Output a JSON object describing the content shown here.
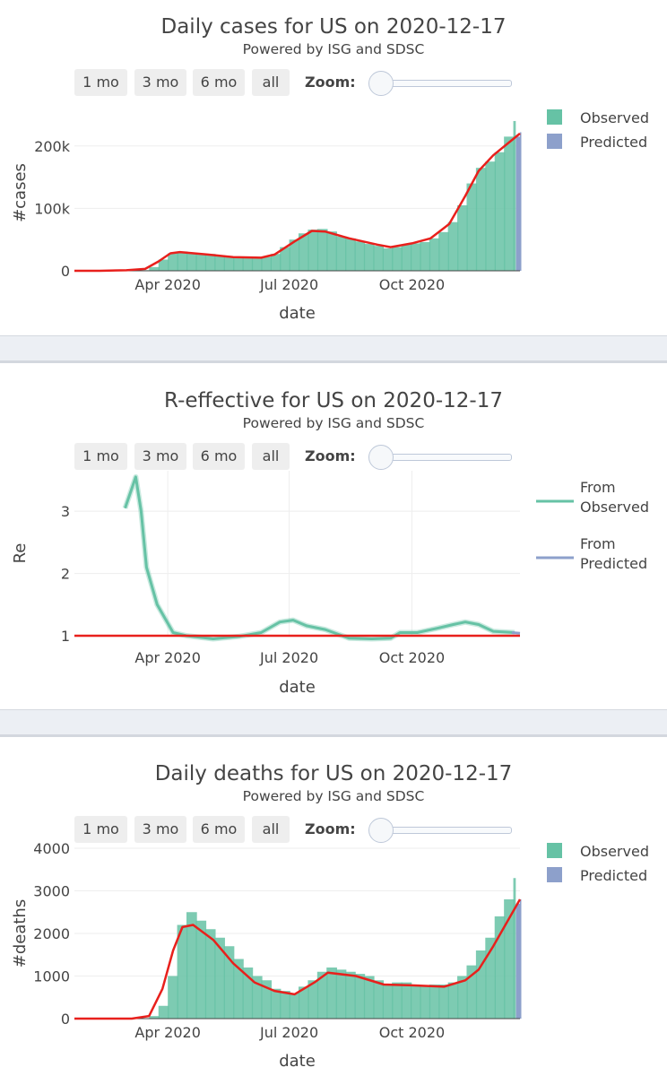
{
  "buttons": [
    "1 mo",
    "3 mo",
    "6 mo",
    "all"
  ],
  "zoom_label": "Zoom:",
  "colors": {
    "observed": "#66c2a5",
    "predicted": "#8da0cb",
    "fit": "#e8201c"
  },
  "chart_data": [
    {
      "type": "bar",
      "title": "Daily cases for US on 2020-12-17",
      "subtitle": "Powered by ISG and SDSC",
      "xlabel": "date",
      "ylabel": "#cases",
      "x_ticks": [
        "Apr 2020",
        "Jul 2020",
        "Oct 2020"
      ],
      "y_ticks": [
        "0",
        "100k",
        "200k"
      ],
      "ylim": [
        0,
        250000
      ],
      "x_range": [
        "2020-01-22",
        "2020-12-21"
      ],
      "legend": [
        "Observed",
        "Predicted"
      ],
      "legend_position": "right",
      "observed_weekly": [
        {
          "date": "2020-01-22",
          "value": 0
        },
        {
          "date": "2020-02-19",
          "value": 0
        },
        {
          "date": "2020-03-04",
          "value": 200
        },
        {
          "date": "2020-03-11",
          "value": 1000
        },
        {
          "date": "2020-03-18",
          "value": 6000
        },
        {
          "date": "2020-03-25",
          "value": 18000
        },
        {
          "date": "2020-04-01",
          "value": 28000
        },
        {
          "date": "2020-04-08",
          "value": 31000
        },
        {
          "date": "2020-04-15",
          "value": 29000
        },
        {
          "date": "2020-04-22",
          "value": 28000
        },
        {
          "date": "2020-04-29",
          "value": 27000
        },
        {
          "date": "2020-05-06",
          "value": 25000
        },
        {
          "date": "2020-05-13",
          "value": 23000
        },
        {
          "date": "2020-05-20",
          "value": 22000
        },
        {
          "date": "2020-05-27",
          "value": 21000
        },
        {
          "date": "2020-06-03",
          "value": 21000
        },
        {
          "date": "2020-06-10",
          "value": 22000
        },
        {
          "date": "2020-06-17",
          "value": 27000
        },
        {
          "date": "2020-06-24",
          "value": 38000
        },
        {
          "date": "2020-07-01",
          "value": 50000
        },
        {
          "date": "2020-07-08",
          "value": 60000
        },
        {
          "date": "2020-07-15",
          "value": 66000
        },
        {
          "date": "2020-07-22",
          "value": 67000
        },
        {
          "date": "2020-07-29",
          "value": 63000
        },
        {
          "date": "2020-08-05",
          "value": 55000
        },
        {
          "date": "2020-08-12",
          "value": 52000
        },
        {
          "date": "2020-08-19",
          "value": 47000
        },
        {
          "date": "2020-08-26",
          "value": 43000
        },
        {
          "date": "2020-09-02",
          "value": 40000
        },
        {
          "date": "2020-09-09",
          "value": 36000
        },
        {
          "date": "2020-09-16",
          "value": 38000
        },
        {
          "date": "2020-09-23",
          "value": 42000
        },
        {
          "date": "2020-09-30",
          "value": 44000
        },
        {
          "date": "2020-10-07",
          "value": 46000
        },
        {
          "date": "2020-10-14",
          "value": 52000
        },
        {
          "date": "2020-10-21",
          "value": 62000
        },
        {
          "date": "2020-10-28",
          "value": 78000
        },
        {
          "date": "2020-11-04",
          "value": 105000
        },
        {
          "date": "2020-11-11",
          "value": 140000
        },
        {
          "date": "2020-11-18",
          "value": 165000
        },
        {
          "date": "2020-11-25",
          "value": 175000
        },
        {
          "date": "2020-12-02",
          "value": 190000
        },
        {
          "date": "2020-12-09",
          "value": 215000
        },
        {
          "date": "2020-12-16",
          "value": 240000
        }
      ],
      "predicted": [
        {
          "date": "2020-12-18",
          "value": 215000
        },
        {
          "date": "2020-12-21",
          "value": 222000
        }
      ],
      "fit": [
        {
          "date": "2020-01-22",
          "value": 0
        },
        {
          "date": "2020-02-10",
          "value": 0
        },
        {
          "date": "2020-03-01",
          "value": 800
        },
        {
          "date": "2020-03-15",
          "value": 3000
        },
        {
          "date": "2020-03-25",
          "value": 15000
        },
        {
          "date": "2020-04-03",
          "value": 28000
        },
        {
          "date": "2020-04-10",
          "value": 30000
        },
        {
          "date": "2020-05-01",
          "value": 26000
        },
        {
          "date": "2020-05-20",
          "value": 22000
        },
        {
          "date": "2020-06-10",
          "value": 21000
        },
        {
          "date": "2020-06-20",
          "value": 26000
        },
        {
          "date": "2020-07-05",
          "value": 47000
        },
        {
          "date": "2020-07-18",
          "value": 64000
        },
        {
          "date": "2020-07-28",
          "value": 63000
        },
        {
          "date": "2020-08-15",
          "value": 52000
        },
        {
          "date": "2020-09-05",
          "value": 42000
        },
        {
          "date": "2020-09-15",
          "value": 38000
        },
        {
          "date": "2020-10-01",
          "value": 44000
        },
        {
          "date": "2020-10-15",
          "value": 52000
        },
        {
          "date": "2020-10-29",
          "value": 75000
        },
        {
          "date": "2020-11-10",
          "value": 120000
        },
        {
          "date": "2020-11-20",
          "value": 160000
        },
        {
          "date": "2020-12-01",
          "value": 185000
        },
        {
          "date": "2020-12-21",
          "value": 220000
        }
      ]
    },
    {
      "type": "line",
      "title": "R-effective for US on 2020-12-17",
      "subtitle": "Powered by ISG and SDSC",
      "xlabel": "date",
      "ylabel": "Re",
      "x_ticks": [
        "Apr 2020",
        "Jul 2020",
        "Oct 2020"
      ],
      "y_ticks": [
        "1",
        "2",
        "3"
      ],
      "ylim": [
        1,
        3.65
      ],
      "x_range": [
        "2020-01-22",
        "2020-12-21"
      ],
      "grid": true,
      "legend": [
        "From Observed",
        "From Predicted"
      ],
      "legend_position": "right",
      "series": [
        {
          "name": "From Observed",
          "points": [
            {
              "date": "2020-02-29",
              "value": 3.05
            },
            {
              "date": "2020-03-04",
              "value": 3.3
            },
            {
              "date": "2020-03-08",
              "value": 3.55
            },
            {
              "date": "2020-03-12",
              "value": 3.0
            },
            {
              "date": "2020-03-16",
              "value": 2.1
            },
            {
              "date": "2020-03-24",
              "value": 1.5
            },
            {
              "date": "2020-04-05",
              "value": 1.05
            },
            {
              "date": "2020-04-15",
              "value": 1.0
            },
            {
              "date": "2020-05-05",
              "value": 0.95
            },
            {
              "date": "2020-05-25",
              "value": 0.99
            },
            {
              "date": "2020-06-10",
              "value": 1.05
            },
            {
              "date": "2020-06-24",
              "value": 1.22
            },
            {
              "date": "2020-07-04",
              "value": 1.25
            },
            {
              "date": "2020-07-14",
              "value": 1.16
            },
            {
              "date": "2020-07-28",
              "value": 1.1
            },
            {
              "date": "2020-08-15",
              "value": 0.96
            },
            {
              "date": "2020-09-01",
              "value": 0.95
            },
            {
              "date": "2020-09-15",
              "value": 0.96
            },
            {
              "date": "2020-09-22",
              "value": 1.05
            },
            {
              "date": "2020-10-05",
              "value": 1.05
            },
            {
              "date": "2020-10-20",
              "value": 1.12
            },
            {
              "date": "2020-11-01",
              "value": 1.18
            },
            {
              "date": "2020-11-10",
              "value": 1.22
            },
            {
              "date": "2020-11-20",
              "value": 1.18
            },
            {
              "date": "2020-12-01",
              "value": 1.07
            },
            {
              "date": "2020-12-17",
              "value": 1.05
            }
          ]
        },
        {
          "name": "From Predicted",
          "points": [
            {
              "date": "2020-12-15",
              "value": 1.05
            },
            {
              "date": "2020-12-21",
              "value": 1.04
            }
          ]
        }
      ],
      "reference_line": 1
    },
    {
      "type": "bar",
      "title": "Daily deaths for US on 2020-12-17",
      "subtitle": "Powered by ISG and SDSC",
      "xlabel": "date",
      "ylabel": "#deaths",
      "x_ticks": [
        "Apr 2020",
        "Jul 2020",
        "Oct 2020"
      ],
      "y_ticks": [
        "0",
        "1000",
        "2000",
        "3000",
        "4000"
      ],
      "ylim": [
        0,
        4000
      ],
      "x_range": [
        "2020-01-22",
        "2020-12-21"
      ],
      "legend": [
        "Observed",
        "Predicted"
      ],
      "legend_position": "right",
      "observed_weekly": [
        {
          "date": "2020-01-22",
          "value": 0
        },
        {
          "date": "2020-02-26",
          "value": 0
        },
        {
          "date": "2020-03-11",
          "value": 10
        },
        {
          "date": "2020-03-18",
          "value": 60
        },
        {
          "date": "2020-03-25",
          "value": 300
        },
        {
          "date": "2020-04-01",
          "value": 1000
        },
        {
          "date": "2020-04-08",
          "value": 2200
        },
        {
          "date": "2020-04-15",
          "value": 2500
        },
        {
          "date": "2020-04-22",
          "value": 2300
        },
        {
          "date": "2020-04-29",
          "value": 2100
        },
        {
          "date": "2020-05-06",
          "value": 1900
        },
        {
          "date": "2020-05-13",
          "value": 1700
        },
        {
          "date": "2020-05-20",
          "value": 1400
        },
        {
          "date": "2020-05-27",
          "value": 1200
        },
        {
          "date": "2020-06-03",
          "value": 1000
        },
        {
          "date": "2020-06-10",
          "value": 900
        },
        {
          "date": "2020-06-17",
          "value": 700
        },
        {
          "date": "2020-06-24",
          "value": 650
        },
        {
          "date": "2020-07-01",
          "value": 600
        },
        {
          "date": "2020-07-08",
          "value": 750
        },
        {
          "date": "2020-07-15",
          "value": 900
        },
        {
          "date": "2020-07-22",
          "value": 1100
        },
        {
          "date": "2020-07-29",
          "value": 1200
        },
        {
          "date": "2020-08-05",
          "value": 1150
        },
        {
          "date": "2020-08-12",
          "value": 1100
        },
        {
          "date": "2020-08-19",
          "value": 1050
        },
        {
          "date": "2020-08-26",
          "value": 1000
        },
        {
          "date": "2020-09-02",
          "value": 900
        },
        {
          "date": "2020-09-09",
          "value": 800
        },
        {
          "date": "2020-09-16",
          "value": 850
        },
        {
          "date": "2020-09-23",
          "value": 850
        },
        {
          "date": "2020-09-30",
          "value": 800
        },
        {
          "date": "2020-10-07",
          "value": 750
        },
        {
          "date": "2020-10-14",
          "value": 800
        },
        {
          "date": "2020-10-21",
          "value": 800
        },
        {
          "date": "2020-10-28",
          "value": 850
        },
        {
          "date": "2020-11-04",
          "value": 1000
        },
        {
          "date": "2020-11-11",
          "value": 1250
        },
        {
          "date": "2020-11-18",
          "value": 1600
        },
        {
          "date": "2020-11-25",
          "value": 1900
        },
        {
          "date": "2020-12-02",
          "value": 2400
        },
        {
          "date": "2020-12-09",
          "value": 2800
        },
        {
          "date": "2020-12-16",
          "value": 3300
        }
      ],
      "predicted": [
        {
          "date": "2020-12-18",
          "value": 2700
        },
        {
          "date": "2020-12-21",
          "value": 2800
        }
      ],
      "fit": [
        {
          "date": "2020-01-22",
          "value": 0
        },
        {
          "date": "2020-03-05",
          "value": 0
        },
        {
          "date": "2020-03-18",
          "value": 60
        },
        {
          "date": "2020-03-28",
          "value": 700
        },
        {
          "date": "2020-04-05",
          "value": 1600
        },
        {
          "date": "2020-04-12",
          "value": 2150
        },
        {
          "date": "2020-04-20",
          "value": 2200
        },
        {
          "date": "2020-05-05",
          "value": 1850
        },
        {
          "date": "2020-05-20",
          "value": 1300
        },
        {
          "date": "2020-06-05",
          "value": 850
        },
        {
          "date": "2020-06-20",
          "value": 650
        },
        {
          "date": "2020-07-05",
          "value": 570
        },
        {
          "date": "2020-07-20",
          "value": 850
        },
        {
          "date": "2020-07-30",
          "value": 1080
        },
        {
          "date": "2020-08-20",
          "value": 1000
        },
        {
          "date": "2020-09-10",
          "value": 800
        },
        {
          "date": "2020-10-01",
          "value": 780
        },
        {
          "date": "2020-10-25",
          "value": 750
        },
        {
          "date": "2020-11-10",
          "value": 900
        },
        {
          "date": "2020-11-20",
          "value": 1150
        },
        {
          "date": "2020-12-01",
          "value": 1700
        },
        {
          "date": "2020-12-21",
          "value": 2800
        }
      ]
    }
  ]
}
